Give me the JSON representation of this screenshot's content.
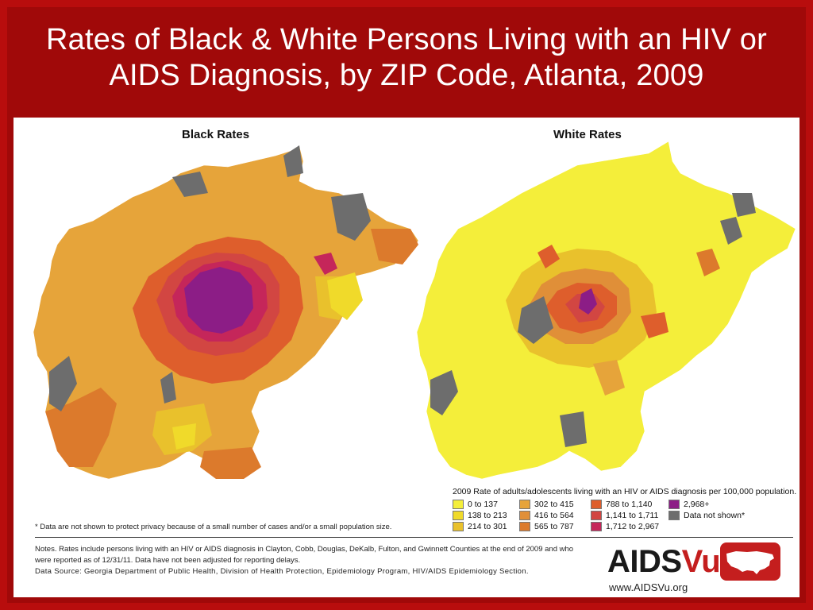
{
  "title": "Rates of Black & White Persons Living with an HIV or AIDS Diagnosis, by ZIP Code, Atlanta, 2009",
  "maps": {
    "left_label": "Black Rates",
    "right_label": "White Rates"
  },
  "legend": {
    "title": "2009 Rate of adults/adolescents living with an HIV or AIDS diagnosis per 100,000 population.",
    "items": [
      {
        "label": "0 to 137",
        "color": "#f4ee3a"
      },
      {
        "label": "138 to 213",
        "color": "#f0da2a"
      },
      {
        "label": "214 to 301",
        "color": "#e9c12c"
      },
      {
        "label": "302 to 415",
        "color": "#e6a43a"
      },
      {
        "label": "416 to 564",
        "color": "#e08f38"
      },
      {
        "label": "565 to 787",
        "color": "#dc7a2c"
      },
      {
        "label": "788 to 1,140",
        "color": "#de5e2c"
      },
      {
        "label": "1,141 to 1,711",
        "color": "#d24642"
      },
      {
        "label": "1,712 to 2,967",
        "color": "#c5265a"
      },
      {
        "label": "2,968+",
        "color": "#8c1d86"
      },
      {
        "label": "Data not shown*",
        "color": "#6d6d6d"
      }
    ]
  },
  "footnote": "* Data are not shown to protect privacy because of a small number of cases and/or a small population size.",
  "notes": "Notes. Rates include persons living with an HIV or AIDS diagnosis in Clayton, Cobb, Douglas, DeKalb, Fulton, and Gwinnett Counties at the end of 2009 and who were reported as of 12/31/11. Data have not been adjusted for reporting delays.",
  "source": "Data Source: Georgia Department of Public Health, Division of Health Protection, Epidemiology Program, HIV/AIDS Epidemiology Section.",
  "logo": {
    "text_main": "AIDS",
    "text_accent": "Vu",
    "url": "www.AIDSVu.org",
    "icon": "usa-map-icon"
  }
}
